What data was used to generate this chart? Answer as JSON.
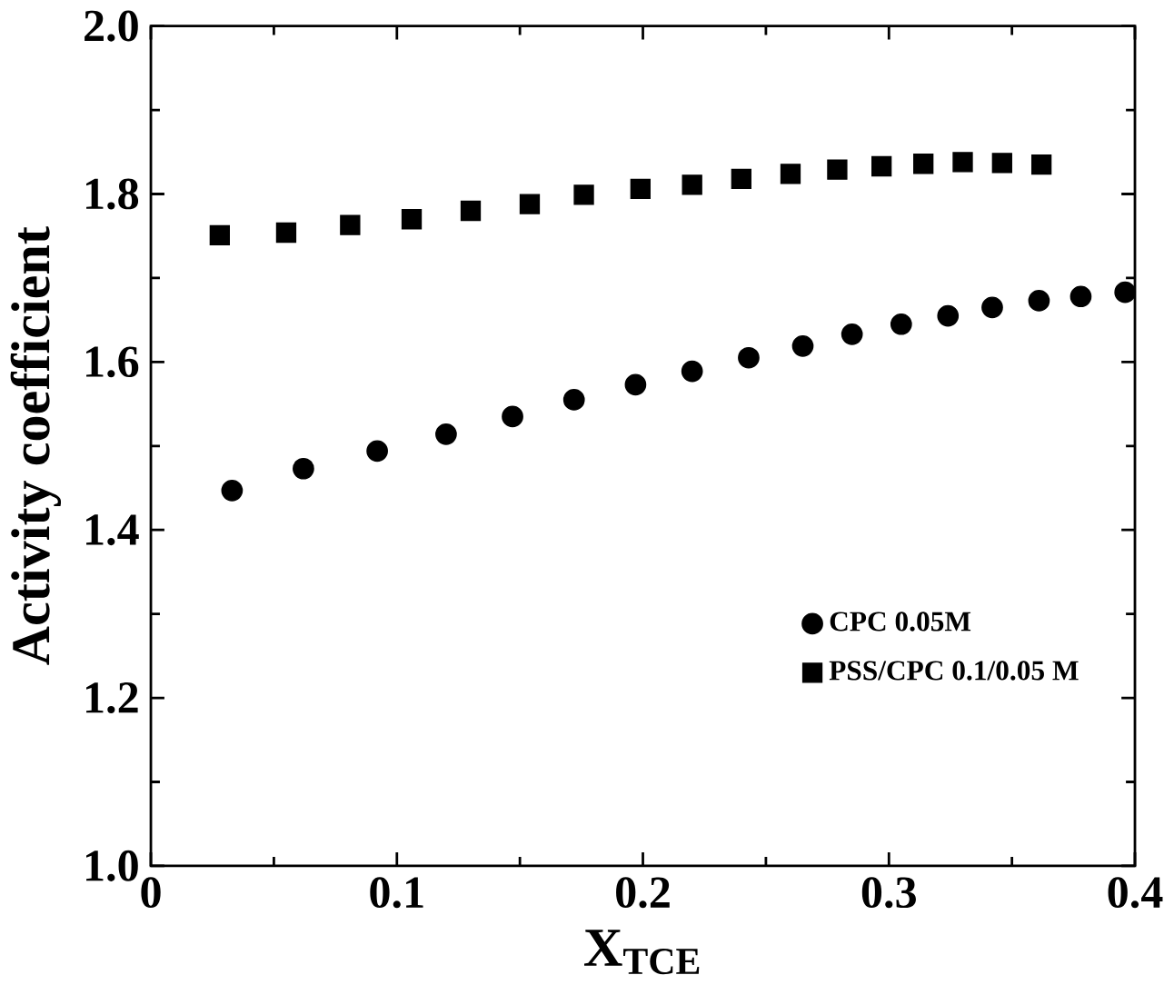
{
  "chart_data": {
    "type": "scatter",
    "xlabel": "X$_{TCE}$",
    "ylabel": "Activity coefficient",
    "xlim": [
      0,
      0.4
    ],
    "xticks": [
      {
        "value": 0,
        "label": "0"
      },
      0.1,
      0.2,
      0.3,
      0.4
    ],
    "ylim": [
      1.0,
      2.0
    ],
    "yticks": [
      {
        "value": 1.0,
        "label": "1.0"
      },
      1.2,
      1.4,
      1.6,
      1.8,
      {
        "value": 2.0,
        "label": "2.0"
      }
    ],
    "legend": "bottom right",
    "grid": false,
    "series": [
      {
        "name": "CPC 0.05M",
        "color": "#000000",
        "marker": "circle",
        "x": [
          0.033,
          0.062,
          0.092,
          0.12,
          0.147,
          0.172,
          0.197,
          0.22,
          0.243,
          0.265,
          0.285,
          0.305,
          0.324,
          0.342,
          0.361,
          0.378,
          0.396
        ],
        "values": [
          1.447,
          1.473,
          1.494,
          1.514,
          1.535,
          1.555,
          1.573,
          1.589,
          1.605,
          1.619,
          1.633,
          1.645,
          1.655,
          1.665,
          1.673,
          1.678,
          1.683
        ]
      },
      {
        "name": "PSS/CPC 0.1/0.05 M",
        "color": "#000000",
        "marker": "square",
        "x": [
          0.028,
          0.055,
          0.081,
          0.106,
          0.13,
          0.154,
          0.176,
          0.199,
          0.22,
          0.24,
          0.26,
          0.279,
          0.297,
          0.314,
          0.33,
          0.346,
          0.362
        ],
        "values": [
          1.751,
          1.754,
          1.763,
          1.77,
          1.78,
          1.788,
          1.799,
          1.806,
          1.811,
          1.818,
          1.824,
          1.829,
          1.833,
          1.836,
          1.838,
          1.837,
          1.835
        ]
      }
    ]
  }
}
